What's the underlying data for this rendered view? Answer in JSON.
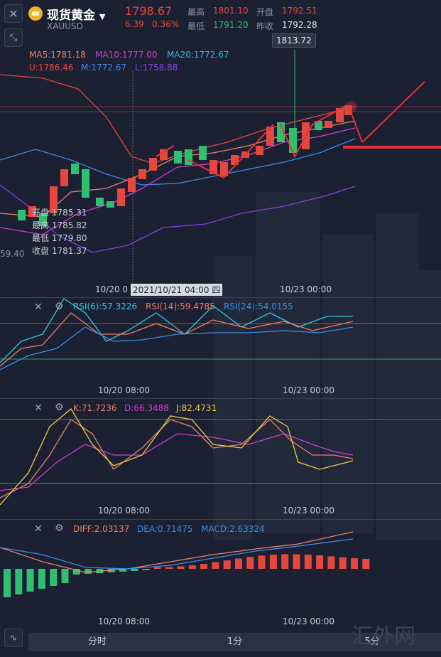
{
  "header": {
    "close_icon": "close-icon",
    "symbol_name": "现货黄金",
    "symbol_code": "XAUUSD",
    "price": "1798.67",
    "change": "6.39",
    "change_pct": "0.36%",
    "high_label": "最高",
    "high_value": "1801.10",
    "open_label": "开盘",
    "open_value": "1792.51",
    "low_label": "最低",
    "low_value": "1791.20",
    "prev_label": "昨收",
    "prev_value": "1792.28"
  },
  "main_chart": {
    "ma5": "MA5:1781.18",
    "ma10": "MA10:1777.00",
    "ma20": "MA20:1772.67",
    "boll_u": "U:1786.46",
    "boll_m": "M:1772.67",
    "boll_l": "L:1758.88",
    "peak_label": "1813.72",
    "left_price": "59.40",
    "tooltip": {
      "open_label": "开盘",
      "open": "1785.31",
      "high_label": "最高",
      "high": "1785.82",
      "low_label": "最低",
      "low": "1779.80",
      "close_label": "收盘",
      "close": "1781.37"
    },
    "time_left": "10/20 0",
    "crosshair_time": "2021/10/21 04:00 四",
    "time_right": "10/23 00:00"
  },
  "rsi": {
    "rsi6": "RSI(6):57.3226",
    "rsi14": "RSI(14):59.4785",
    "rsi24": "RSI(24):54.0155",
    "time_left": "10/20 08:00",
    "time_right": "10/23 00:00"
  },
  "kdj": {
    "k": "K:71.7236",
    "d": "D:66.3488",
    "j": "J:82.4731",
    "time_left": "10/20 08:00",
    "time_right": "10/23 00:00"
  },
  "macd": {
    "diff": "DIFF:2.03137",
    "dea": "DEA:0.71475",
    "macd": "MACD:2.63324",
    "time_left": "10/20 08:00",
    "time_right": "10/23 00:00"
  },
  "tabs": [
    "分时",
    "1分",
    "5分"
  ],
  "watermark": "汇外网",
  "colors": {
    "up": "#e8473f",
    "down": "#2fbf71",
    "bg": "#1b2132",
    "ma5": "#f0806a",
    "ma10": "#d040d0",
    "ma20": "#36b8d8",
    "boll_u": "#e8473f",
    "boll_m": "#3a8ee8",
    "boll_l": "#8a40e0"
  }
}
